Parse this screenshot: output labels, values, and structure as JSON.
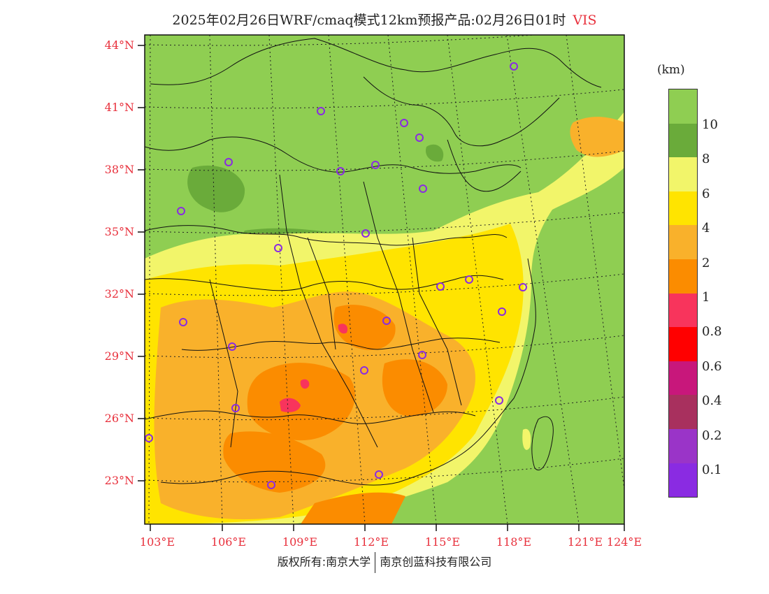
{
  "title": {
    "main": "2025年02月26日WRF/cmaq模式12km预报产品:02月26日01时",
    "variable": "VIS"
  },
  "latitude_labels": [
    "44°N",
    "41°N",
    "38°N",
    "35°N",
    "32°N",
    "29°N",
    "26°N",
    "23°N"
  ],
  "longitude_labels": [
    "103°E",
    "106°E",
    "109°E",
    "112°E",
    "115°E",
    "118°E",
    "121°E",
    "124°E"
  ],
  "colorbar": {
    "unit": "(km)",
    "labels": [
      "10",
      "8",
      "6",
      "4",
      "2",
      "1",
      "0.8",
      "0.6",
      "0.4",
      "0.2",
      "0.1"
    ],
    "colors": [
      "#8fce52",
      "#6aab3a",
      "#f2f56a",
      "#ffe400",
      "#f9b12b",
      "#fb8c00",
      "#f8345c",
      "#ff0000",
      "#c8177b",
      "#a8305e",
      "#9a34c8",
      "#8a2be2"
    ]
  },
  "credit": {
    "left": "版权所有:南京大学",
    "right": "南京创蓝科技有限公司"
  },
  "stations_icon": "circle-marker-icon"
}
